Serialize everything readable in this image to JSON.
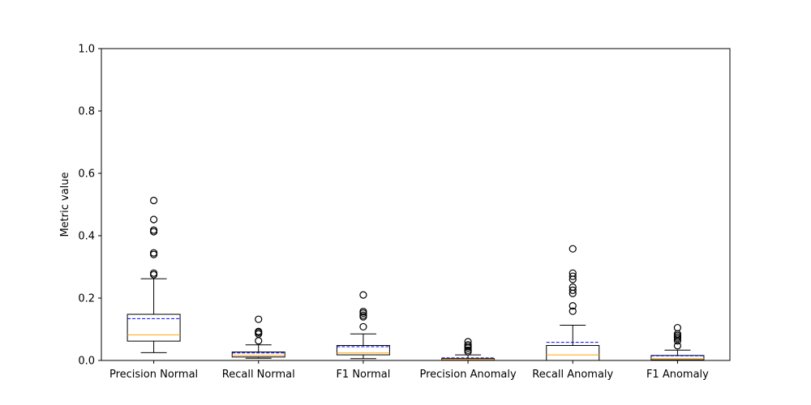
{
  "chart_data": {
    "type": "box",
    "ylabel": "Metric value",
    "xlabel": "",
    "ylim": [
      0,
      1.0
    ],
    "yticks": [
      "0.0",
      "0.2",
      "0.4",
      "0.6",
      "0.8",
      "1.0"
    ],
    "grid": false,
    "colors": {
      "box": "#000000",
      "median": "#ffa500",
      "mean": "#0000ff",
      "outlier": "#000000"
    },
    "categories": [
      "Precision Normal",
      "Recall Normal",
      "F1 Normal",
      "Precision Anomaly",
      "Recall Anomaly",
      "F1 Anomaly"
    ],
    "boxes": [
      {
        "whislo": 0.025,
        "q1": 0.062,
        "median": 0.082,
        "mean": 0.134,
        "q3": 0.148,
        "whishi": 0.262,
        "fliers": [
          0.275,
          0.28,
          0.34,
          0.345,
          0.413,
          0.418,
          0.452,
          0.513
        ]
      },
      {
        "whislo": 0.007,
        "q1": 0.011,
        "median": 0.016,
        "mean": 0.024,
        "q3": 0.027,
        "whishi": 0.05,
        "fliers": [
          0.063,
          0.085,
          0.09,
          0.093,
          0.132
        ]
      },
      {
        "whislo": 0.006,
        "q1": 0.018,
        "median": 0.024,
        "mean": 0.044,
        "q3": 0.048,
        "whishi": 0.085,
        "fliers": [
          0.108,
          0.14,
          0.145,
          0.152,
          0.157,
          0.21
        ]
      },
      {
        "whislo": 0.0,
        "q1": 0.001,
        "median": 0.003,
        "mean": 0.008,
        "q3": 0.006,
        "whishi": 0.018,
        "fliers": [
          0.028,
          0.033,
          0.04,
          0.045,
          0.05,
          0.06
        ]
      },
      {
        "whislo": 0.0,
        "q1": 0.0,
        "median": 0.018,
        "mean": 0.058,
        "q3": 0.048,
        "whishi": 0.113,
        "fliers": [
          0.158,
          0.175,
          0.215,
          0.225,
          0.235,
          0.26,
          0.27,
          0.28,
          0.358
        ]
      },
      {
        "whislo": 0.0,
        "q1": 0.002,
        "median": 0.006,
        "mean": 0.015,
        "q3": 0.016,
        "whishi": 0.033,
        "fliers": [
          0.047,
          0.063,
          0.07,
          0.075,
          0.08,
          0.085,
          0.105
        ]
      }
    ]
  }
}
